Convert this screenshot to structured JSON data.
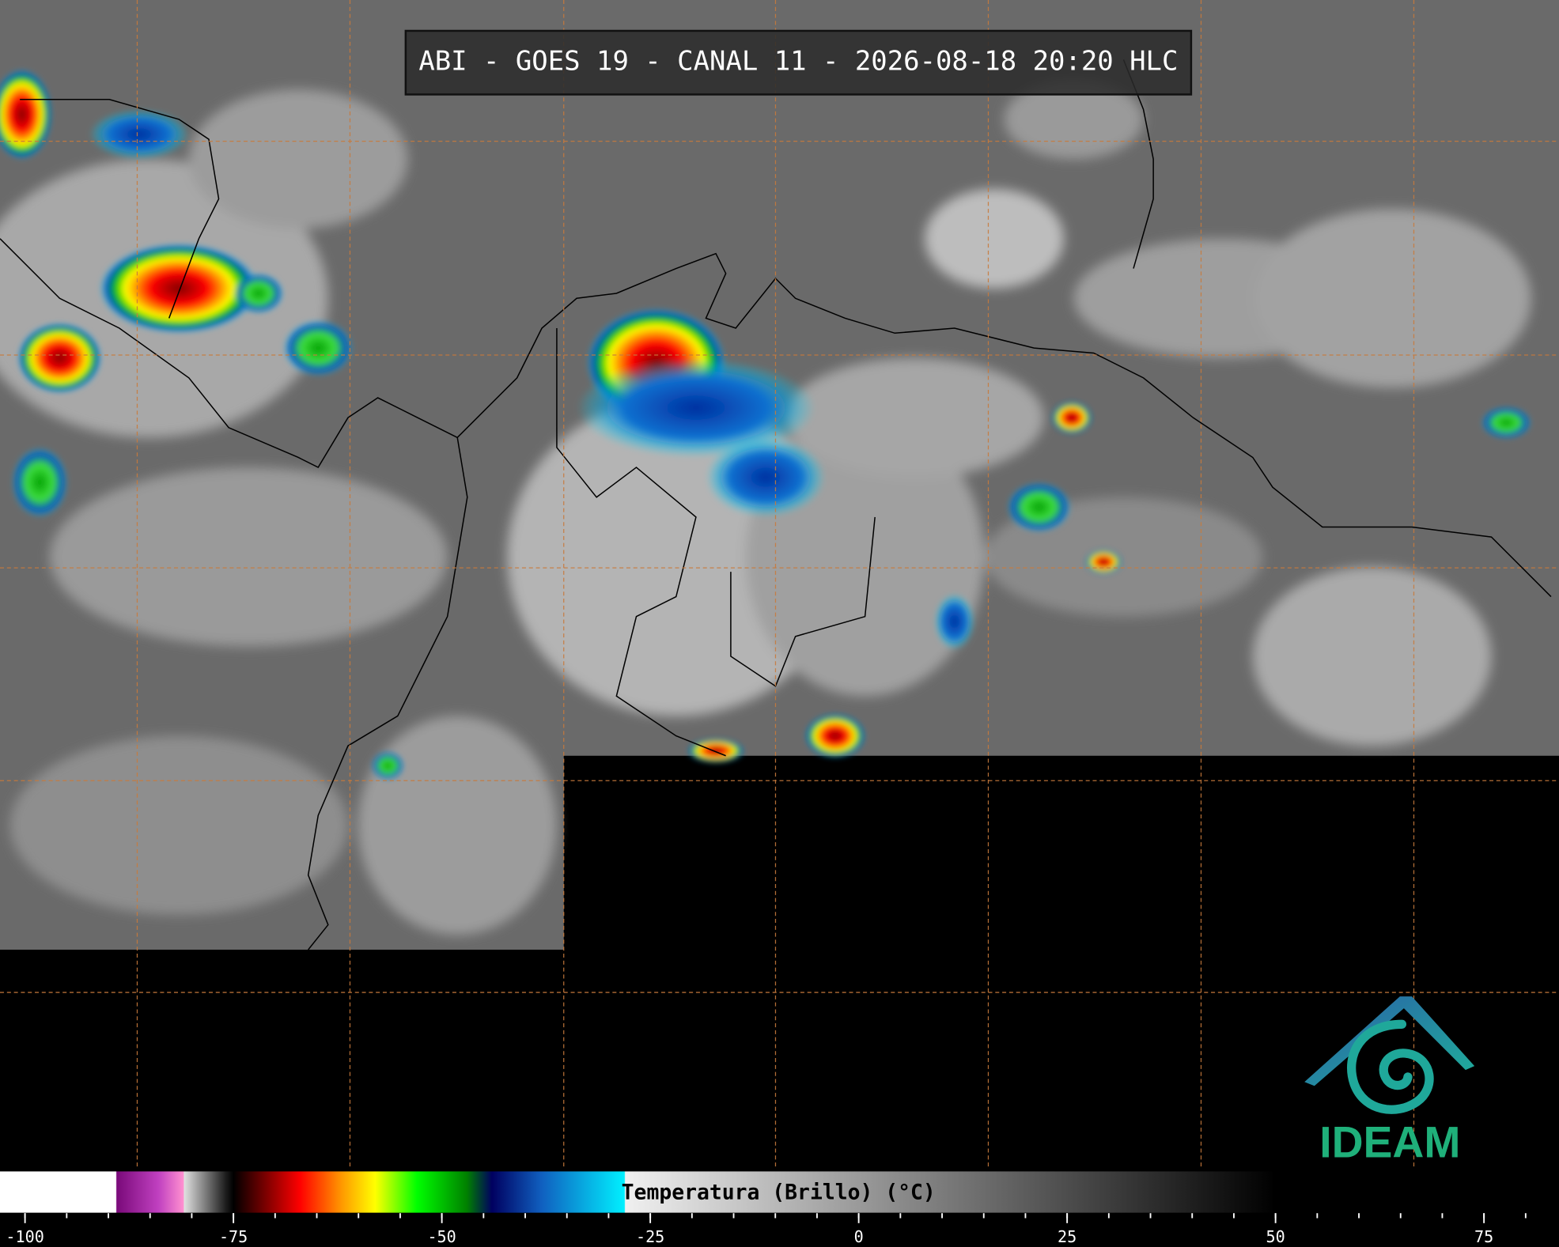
{
  "title": "ABI - GOES 19 - CANAL 11 - 2026-08-18 20:20 HLC",
  "logo": {
    "text": "IDEAM"
  },
  "colorbar": {
    "label": "Temperatura (Brillo) (°C)",
    "xlim": [
      -103,
      84
    ],
    "xticks": [
      -100,
      -75,
      -50,
      -25,
      0,
      25,
      50,
      75
    ],
    "minor_tick_step": 5,
    "color_stops": [
      {
        "value": -103,
        "color": "#ffffff"
      },
      {
        "value": -89.1,
        "color": "#ffffff"
      },
      {
        "value": -89,
        "color": "#7a0a7a"
      },
      {
        "value": -84,
        "color": "#c040c0"
      },
      {
        "value": -81,
        "color": "#ff90d0"
      },
      {
        "value": -80.9,
        "color": "#e0e0e0"
      },
      {
        "value": -76,
        "color": "#202020"
      },
      {
        "value": -75,
        "color": "#000000"
      },
      {
        "value": -72,
        "color": "#600000"
      },
      {
        "value": -67,
        "color": "#ff0000"
      },
      {
        "value": -62,
        "color": "#ff9900"
      },
      {
        "value": -58,
        "color": "#ffff00"
      },
      {
        "value": -53,
        "color": "#00ff00"
      },
      {
        "value": -47,
        "color": "#008000"
      },
      {
        "value": -44,
        "color": "#000060"
      },
      {
        "value": -38,
        "color": "#1060c0"
      },
      {
        "value": -28.1,
        "color": "#00f0ff"
      },
      {
        "value": -28,
        "color": "#f0f0f0"
      },
      {
        "value": 50,
        "color": "#000000"
      }
    ]
  }
}
